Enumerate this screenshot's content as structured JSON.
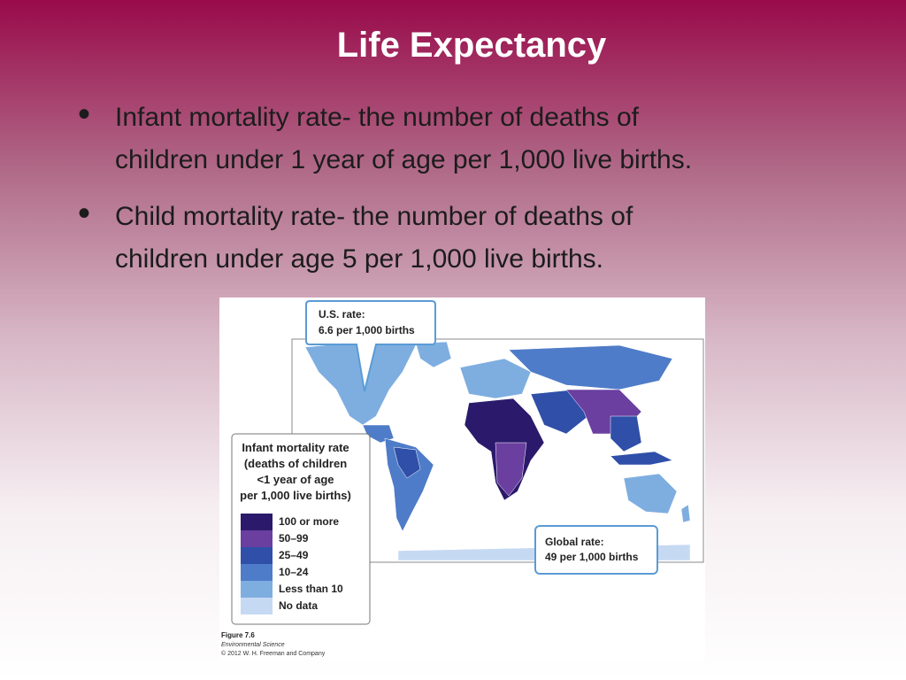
{
  "title": "Life Expectancy",
  "bullets": [
    [
      "Infant mortality rate- the number of deaths of",
      "children under 1 year of age per 1,000 live births."
    ],
    [
      "Child mortality rate- the number of deaths of",
      "children under age 5 per 1,000 live births."
    ]
  ],
  "figure": {
    "us_callout": [
      "U.S. rate:",
      "6.6 per 1,000 births"
    ],
    "global_callout": [
      "Global rate:",
      "49 per 1,000 births"
    ],
    "legend": {
      "title": [
        "Infant mortality rate",
        "(deaths of children",
        "<1 year of age",
        "per 1,000 live births)"
      ],
      "items": [
        "100 or more",
        "50–99",
        "25–49",
        "10–24",
        "Less than 10",
        "No data"
      ]
    },
    "caption": [
      "Figure 7.6",
      "Environmental Science",
      "© 2012 W. H. Freeman and Company"
    ]
  }
}
